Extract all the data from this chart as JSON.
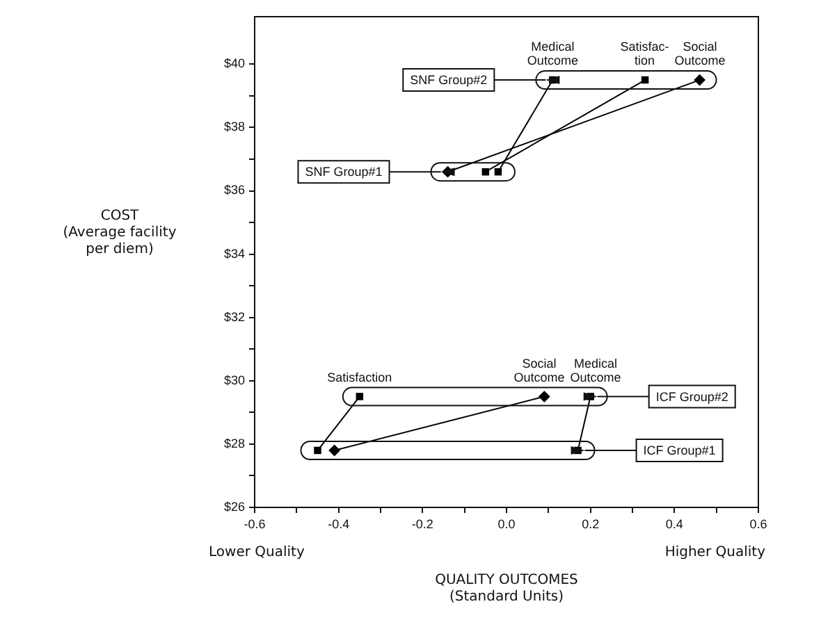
{
  "chart_data": {
    "type": "line",
    "xlabel": "QUALITY OUTCOMES\n(Standard Units)",
    "ylabel": "COST\n(Average facility\nper diem)",
    "xlim": [
      -0.6,
      0.6
    ],
    "ylim": [
      26,
      41.5
    ],
    "xticks": [
      -0.6,
      {
        "value": -0.5,
        "label": null
      },
      -0.4,
      {
        "value": -0.3,
        "label": null
      },
      -0.2,
      {
        "value": -0.1,
        "label": null
      },
      {
        "value": 0,
        "label": "0.0"
      },
      {
        "value": 0.1,
        "label": null
      },
      0.2,
      {
        "value": 0.3,
        "label": null
      },
      0.4,
      {
        "value": 0.5,
        "label": null
      },
      0.6
    ],
    "yticks": [
      {
        "value": 26,
        "label": "$26"
      },
      {
        "value": 27,
        "label": null
      },
      {
        "value": 28,
        "label": "$28"
      },
      {
        "value": 29,
        "label": null
      },
      {
        "value": 30,
        "label": "$30"
      },
      {
        "value": 31,
        "label": null
      },
      {
        "value": 32,
        "label": "$32"
      },
      {
        "value": 33,
        "label": null
      },
      {
        "value": 34,
        "label": "$34"
      },
      {
        "value": 35,
        "label": null
      },
      {
        "value": 36,
        "label": "$36"
      },
      {
        "value": 37,
        "label": null
      },
      {
        "value": 38,
        "label": "$38"
      },
      {
        "value": 39,
        "label": null
      },
      {
        "value": 40,
        "label": "$40"
      }
    ],
    "grid": false,
    "legend": false,
    "series": [
      {
        "color": "#000000",
        "marker": "square",
        "x": [
          -0.02,
          0.11
        ],
        "values": [
          36.6,
          39.5
        ]
      },
      {
        "color": "#000000",
        "marker": "square",
        "x": [
          -0.05,
          0.33
        ],
        "values": [
          36.6,
          39.5
        ]
      },
      {
        "color": "#000000",
        "marker": "diamond",
        "x": [
          -0.14,
          0.46
        ],
        "values": [
          36.6,
          39.5
        ]
      },
      {
        "color": "#000000",
        "marker": "square",
        "x": [
          0.17,
          0.2
        ],
        "values": [
          27.8,
          29.5
        ]
      },
      {
        "color": "#000000",
        "marker": "square",
        "x": [
          -0.45,
          -0.35
        ],
        "values": [
          27.8,
          29.5
        ]
      },
      {
        "color": "#000000",
        "marker": "diamond",
        "x": [
          -0.41,
          0.09
        ],
        "values": [
          27.8,
          29.5
        ]
      }
    ],
    "annotations": [
      "Lower Quality",
      "Higher Quality",
      {
        "text": "Medical\nOutcome",
        "x": 0.11,
        "y": 39.5
      },
      {
        "text": "Satisfac-\ntion",
        "x": 0.33,
        "y": 39.5
      },
      {
        "text": "Social\nOutcome",
        "x": 0.46,
        "y": 39.5
      },
      {
        "text": "Satisfaction",
        "x": -0.35,
        "y": 29.5
      },
      {
        "text": "Social\nOutcome",
        "x": 0.09,
        "y": 29.5
      },
      {
        "text": "Medical\nOutcome",
        "x": 0.2,
        "y": 29.5
      },
      {
        "text": "SNF Group#2",
        "x": 0.11,
        "y": 39.5
      },
      {
        "text": "SNF Group#1",
        "x": -0.14,
        "y": 36.6
      },
      {
        "text": "ICF Group#2",
        "x": 0.2,
        "y": 29.5
      },
      {
        "text": "ICF Group#1",
        "x": 0.17,
        "y": 27.8
      }
    ]
  }
}
